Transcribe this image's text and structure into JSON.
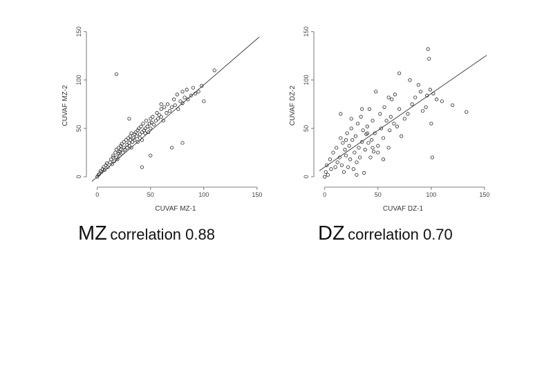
{
  "chart_data": [
    {
      "type": "scatter",
      "xlabel": "CUVAF MZ-1",
      "ylabel": "CUVAF MZ-2",
      "xlim": [
        -5,
        152
      ],
      "ylim": [
        -5,
        152
      ],
      "xticks": [
        0,
        50,
        100,
        150
      ],
      "yticks": [
        0,
        50,
        100,
        150
      ],
      "regression": {
        "intercept": 0,
        "slope": 0.95
      },
      "grid": false,
      "x": [
        0,
        1,
        2,
        3,
        4,
        5,
        6,
        7,
        8,
        9,
        10,
        12,
        13,
        14,
        15,
        15,
        16,
        17,
        18,
        18,
        19,
        20,
        20,
        21,
        21,
        22,
        22,
        23,
        24,
        25,
        25,
        26,
        27,
        28,
        28,
        29,
        30,
        30,
        31,
        31,
        32,
        32,
        33,
        34,
        35,
        35,
        36,
        37,
        38,
        38,
        39,
        40,
        40,
        41,
        42,
        42,
        43,
        44,
        45,
        45,
        46,
        47,
        48,
        49,
        50,
        50,
        51,
        52,
        53,
        55,
        56,
        57,
        58,
        60,
        60,
        62,
        63,
        65,
        66,
        68,
        70,
        72,
        73,
        75,
        76,
        78,
        80,
        80,
        82,
        84,
        85,
        88,
        90,
        92,
        95,
        98,
        100,
        18,
        42,
        70,
        80,
        60,
        30,
        50,
        110
      ],
      "y": [
        0,
        2,
        3,
        6,
        5,
        8,
        10,
        7,
        12,
        14,
        10,
        15,
        18,
        13,
        20,
        22,
        16,
        25,
        20,
        28,
        18,
        30,
        24,
        26,
        22,
        32,
        28,
        34,
        25,
        30,
        36,
        28,
        38,
        33,
        30,
        40,
        35,
        32,
        42,
        38,
        30,
        45,
        36,
        40,
        44,
        38,
        46,
        42,
        48,
        36,
        50,
        44,
        40,
        52,
        46,
        38,
        55,
        48,
        50,
        45,
        58,
        52,
        46,
        55,
        60,
        50,
        56,
        62,
        54,
        58,
        66,
        60,
        64,
        70,
        62,
        58,
        72,
        66,
        75,
        68,
        72,
        80,
        74,
        85,
        70,
        78,
        88,
        76,
        82,
        90,
        80,
        84,
        92,
        86,
        88,
        94,
        78,
        106,
        10,
        30,
        35,
        75,
        60,
        22,
        110
      ]
    },
    {
      "type": "scatter",
      "xlabel": "CUVAF DZ-1",
      "ylabel": "CUVAF DZ-2",
      "xlim": [
        -5,
        152
      ],
      "ylim": [
        -5,
        152
      ],
      "xticks": [
        0,
        50,
        100,
        150
      ],
      "yticks": [
        0,
        50,
        100,
        150
      ],
      "regression": {
        "intercept": 10,
        "slope": 0.76
      },
      "grid": false,
      "x": [
        0,
        1,
        2,
        3,
        5,
        6,
        8,
        10,
        11,
        12,
        14,
        15,
        16,
        17,
        18,
        19,
        20,
        21,
        22,
        23,
        24,
        25,
        26,
        27,
        28,
        29,
        30,
        31,
        32,
        33,
        34,
        35,
        36,
        37,
        38,
        39,
        40,
        41,
        42,
        43,
        44,
        45,
        46,
        47,
        48,
        50,
        52,
        53,
        55,
        56,
        58,
        60,
        61,
        62,
        63,
        65,
        66,
        68,
        70,
        72,
        75,
        78,
        80,
        82,
        85,
        88,
        90,
        92,
        95,
        96,
        97,
        98,
        99,
        100,
        101,
        102,
        105,
        110,
        120,
        133,
        25,
        45,
        15,
        60,
        35,
        70,
        50,
        20,
        40,
        30,
        55
      ],
      "y": [
        0,
        5,
        12,
        2,
        18,
        8,
        25,
        10,
        30,
        15,
        20,
        40,
        12,
        35,
        5,
        28,
        22,
        45,
        10,
        32,
        18,
        50,
        38,
        8,
        25,
        42,
        15,
        55,
        30,
        20,
        62,
        36,
        48,
        4,
        28,
        44,
        52,
        35,
        70,
        20,
        38,
        58,
        26,
        45,
        88,
        32,
        65,
        50,
        40,
        72,
        58,
        30,
        48,
        62,
        80,
        55,
        85,
        52,
        70,
        42,
        60,
        65,
        100,
        75,
        82,
        95,
        88,
        68,
        72,
        84,
        132,
        122,
        90,
        55,
        20,
        86,
        80,
        78,
        74,
        67,
        60,
        30,
        65,
        82,
        70,
        107,
        25,
        38,
        45,
        2,
        18
      ]
    }
  ],
  "captions": {
    "mz": {
      "big": "MZ",
      "small": "correlation 0.88"
    },
    "dz": {
      "big": "DZ",
      "small": "correlation 0.70"
    }
  }
}
